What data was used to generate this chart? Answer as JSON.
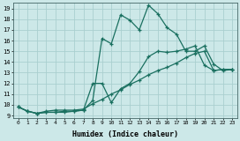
{
  "xlabel": "Humidex (Indice chaleur)",
  "bg_color": "#cce8e8",
  "grid_color": "#aacfcf",
  "line_color": "#1a7060",
  "xlim": [
    -0.5,
    23.5
  ],
  "ylim": [
    8.8,
    19.5
  ],
  "xticks": [
    0,
    1,
    2,
    3,
    4,
    5,
    6,
    7,
    8,
    9,
    10,
    11,
    12,
    13,
    14,
    15,
    16,
    17,
    18,
    19,
    20,
    21,
    22,
    23
  ],
  "yticks": [
    9,
    10,
    11,
    12,
    13,
    14,
    15,
    16,
    17,
    18,
    19
  ],
  "line_high_x": [
    0,
    1,
    2,
    3,
    4,
    5,
    6,
    7,
    8,
    9,
    10,
    11,
    12,
    13,
    14,
    15,
    16,
    17,
    18,
    19,
    20,
    21,
    22,
    23
  ],
  "line_high_y": [
    9.8,
    9.4,
    9.2,
    9.3,
    9.3,
    9.4,
    9.4,
    9.5,
    10.4,
    16.2,
    15.7,
    18.4,
    17.9,
    17.0,
    19.3,
    18.5,
    17.2,
    16.6,
    15.0,
    15.0,
    15.5,
    13.8,
    13.2,
    13.3
  ],
  "line_mid_x": [
    0,
    1,
    2,
    3,
    4,
    5,
    6,
    7,
    8,
    9,
    10,
    11,
    12,
    13,
    14,
    15,
    16,
    17,
    18,
    19,
    20,
    21,
    22,
    23
  ],
  "line_mid_y": [
    9.8,
    9.4,
    9.2,
    9.3,
    9.3,
    9.3,
    9.4,
    9.5,
    12.0,
    12.0,
    10.2,
    11.5,
    12.0,
    13.1,
    14.5,
    15.0,
    14.9,
    15.0,
    15.2,
    15.5,
    13.7,
    13.2,
    13.3,
    13.3
  ],
  "line_low_x": [
    0,
    1,
    2,
    3,
    4,
    5,
    6,
    7,
    8,
    9,
    10,
    11,
    12,
    13,
    14,
    15,
    16,
    17,
    18,
    19,
    20,
    21,
    22,
    23
  ],
  "line_low_y": [
    9.8,
    9.4,
    9.2,
    9.4,
    9.5,
    9.5,
    9.5,
    9.6,
    10.1,
    10.5,
    11.0,
    11.4,
    11.9,
    12.3,
    12.8,
    13.2,
    13.5,
    13.9,
    14.4,
    14.8,
    15.0,
    13.2,
    13.3,
    13.3
  ]
}
